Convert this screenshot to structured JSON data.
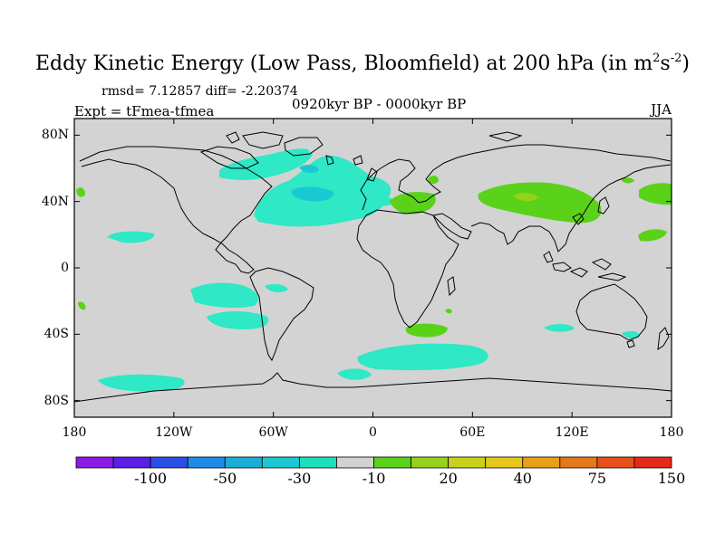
{
  "title": {
    "main": "Eddy Kinetic Energy (Low Pass, Bloomfield) at 200 hPa (in m",
    "sup1": "2",
    "mid": "s",
    "sup2": "-2",
    "close": ")"
  },
  "stats": "rmsd= 7.12857 diff= -2.20374",
  "period": "0920kyr BP - 0000kyr BP",
  "expt": "Expt = tFmea-tfmea",
  "season": "JJA",
  "axes": {
    "x_ticks": [
      "180",
      "120W",
      "60W",
      "0",
      "60E",
      "120E",
      "180"
    ],
    "y_ticks": [
      "80N",
      "40N",
      "0",
      "40S",
      "80S"
    ]
  },
  "colorbar": {
    "colors": [
      "#8c1ae6",
      "#5a1ee6",
      "#2a4ee6",
      "#1e8ce6",
      "#1aaed6",
      "#1ac8d2",
      "#1ae0be",
      "#d2d2d2",
      "#5ad21a",
      "#96d21a",
      "#c8d21a",
      "#e6c81a",
      "#e6a01a",
      "#e6781a",
      "#e6501a",
      "#e6281a"
    ],
    "labels": [
      "-100",
      "-50",
      "-30",
      "-10",
      "20",
      "40",
      "75",
      "150"
    ]
  },
  "map_colors": {
    "ocean_land_background": "#d3d3d3",
    "negative_anomaly": "#2ee8c6",
    "strong_negative_anomaly": "#1ac8d2",
    "positive_anomaly": "#5ad21a",
    "strong_positive_anomaly": "#96d21a",
    "coastline": "#000000"
  }
}
